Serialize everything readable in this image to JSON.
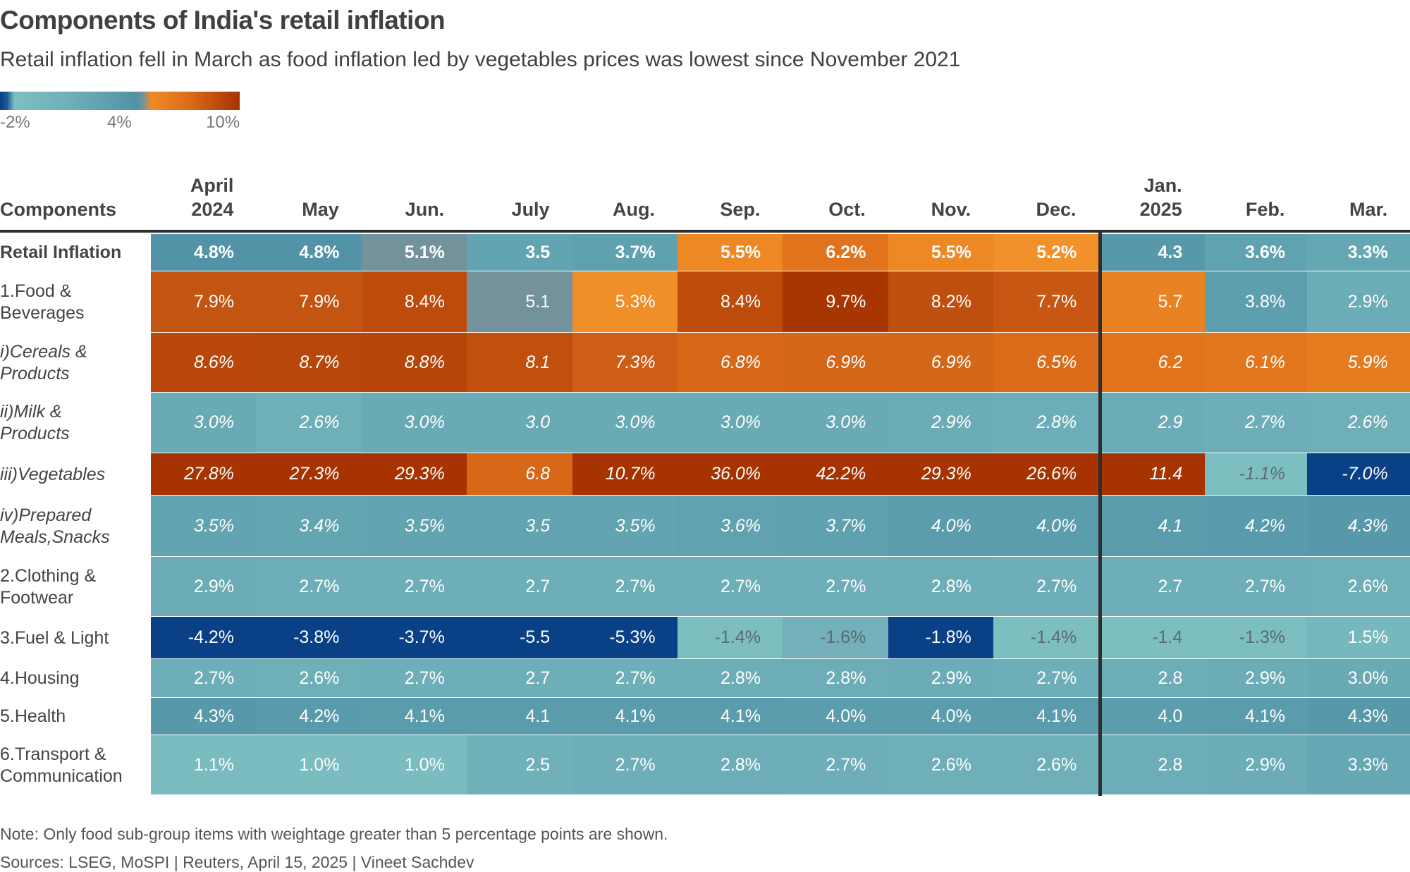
{
  "title": "Components of India's retail inflation",
  "subtitle": "Retail inflation fell in March as food inflation led by vegetables prices was lowest since November 2021",
  "legend": {
    "labels": [
      "-2%",
      "4%",
      "10%"
    ],
    "colors": [
      "#0a3f85",
      "#7dbfc0",
      "#5292a7",
      "#f08a24",
      "#a63300"
    ]
  },
  "note": "Note: Only food sub-group items with weightage greater than 5 percentage points are shown.",
  "source": "Sources: LSEG, MoSPI | Reuters, April 15, 2025 | Vineet Sachdev",
  "chart_data": {
    "type": "heatmap",
    "title": "Components of India's retail inflation",
    "row_header": "Components",
    "columns": [
      {
        "line1": "April",
        "line2": "2024"
      },
      {
        "line1": "",
        "line2": "May"
      },
      {
        "line1": "",
        "line2": "Jun."
      },
      {
        "line1": "",
        "line2": "July"
      },
      {
        "line1": "",
        "line2": "Aug."
      },
      {
        "line1": "",
        "line2": "Sep."
      },
      {
        "line1": "",
        "line2": "Oct."
      },
      {
        "line1": "",
        "line2": "Nov."
      },
      {
        "line1": "",
        "line2": "Dec."
      },
      {
        "line1": "Jan.",
        "line2": "2025"
      },
      {
        "line1": "",
        "line2": "Feb."
      },
      {
        "line1": "",
        "line2": "Mar."
      }
    ],
    "color_scale": {
      "min": -2,
      "mid": 4,
      "max": 10
    },
    "rows": [
      {
        "label": [
          "Retail Inflation"
        ],
        "style": "bold",
        "values": [
          "4.8%",
          "4.8%",
          "5.1%",
          "3.5",
          "3.7%",
          "5.5%",
          "6.2%",
          "5.5%",
          "5.2%",
          "4.3",
          "3.6%",
          "3.3%"
        ]
      },
      {
        "label": [
          "1.Food &",
          "Beverages"
        ],
        "style": "normal",
        "values": [
          "7.9%",
          "7.9%",
          "8.4%",
          "5.1",
          "5.3%",
          "8.4%",
          "9.7%",
          "8.2%",
          "7.7%",
          "5.7",
          "3.8%",
          "2.9%"
        ]
      },
      {
        "label": [
          "i)Cereals &",
          "Products"
        ],
        "style": "italic",
        "values": [
          "8.6%",
          "8.7%",
          "8.8%",
          "8.1",
          "7.3%",
          "6.8%",
          "6.9%",
          "6.9%",
          "6.5%",
          "6.2",
          "6.1%",
          "5.9%"
        ]
      },
      {
        "label": [
          "ii)Milk &",
          "Products"
        ],
        "style": "italic",
        "values": [
          "3.0%",
          "2.6%",
          "3.0%",
          "3.0",
          "3.0%",
          "3.0%",
          "3.0%",
          "2.9%",
          "2.8%",
          "2.9",
          "2.7%",
          "2.6%"
        ]
      },
      {
        "label": [
          "iii)Vegetables"
        ],
        "style": "italic",
        "values": [
          "27.8%",
          "27.3%",
          "29.3%",
          "6.8",
          "10.7%",
          "36.0%",
          "42.2%",
          "29.3%",
          "26.6%",
          "11.4",
          "-1.1%",
          "-7.0%"
        ]
      },
      {
        "label": [
          "iv)Prepared",
          "Meals,Snacks"
        ],
        "style": "italic",
        "values": [
          "3.5%",
          "3.4%",
          "3.5%",
          "3.5",
          "3.5%",
          "3.6%",
          "3.7%",
          "4.0%",
          "4.0%",
          "4.1",
          "4.2%",
          "4.3%"
        ]
      },
      {
        "label": [
          "2.Clothing &",
          "Footwear"
        ],
        "style": "normal",
        "values": [
          "2.9%",
          "2.7%",
          "2.7%",
          "2.7",
          "2.7%",
          "2.7%",
          "2.7%",
          "2.8%",
          "2.7%",
          "2.7",
          "2.7%",
          "2.6%"
        ]
      },
      {
        "label": [
          "3.Fuel & Light"
        ],
        "style": "normal",
        "values": [
          "-4.2%",
          "-3.8%",
          "-3.7%",
          "-5.5",
          "-5.3%",
          "-1.4%",
          "-1.6%",
          "-1.8%",
          "-1.4%",
          "-1.4",
          "-1.3%",
          "1.5%"
        ]
      },
      {
        "label": [
          "4.Housing"
        ],
        "style": "normal",
        "values": [
          "2.7%",
          "2.6%",
          "2.7%",
          "2.7",
          "2.7%",
          "2.8%",
          "2.8%",
          "2.9%",
          "2.7%",
          "2.8",
          "2.9%",
          "3.0%"
        ]
      },
      {
        "label": [
          "5.Health"
        ],
        "style": "normal",
        "values": [
          "4.3%",
          "4.2%",
          "4.1%",
          "4.1",
          "4.1%",
          "4.1%",
          "4.0%",
          "4.0%",
          "4.1%",
          "4.0",
          "4.1%",
          "4.3%"
        ]
      },
      {
        "label": [
          "6.Transport &",
          "Communication"
        ],
        "style": "normal",
        "values": [
          "1.1%",
          "1.0%",
          "1.0%",
          "2.5",
          "2.7%",
          "2.8%",
          "2.7%",
          "2.6%",
          "2.6%",
          "2.8",
          "2.9%",
          "3.3%"
        ]
      }
    ]
  }
}
